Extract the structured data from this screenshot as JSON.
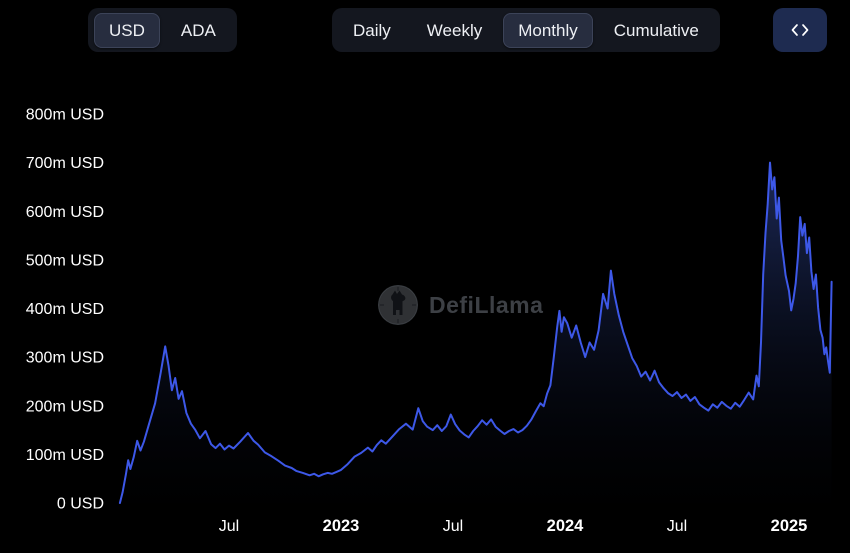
{
  "header": {
    "currency_toggle": {
      "options": [
        {
          "label": "USD",
          "selected": true
        },
        {
          "label": "ADA",
          "selected": false
        }
      ]
    },
    "interval_toggle": {
      "options": [
        {
          "label": "Daily",
          "selected": false
        },
        {
          "label": "Weekly",
          "selected": false
        },
        {
          "label": "Monthly",
          "selected": true
        },
        {
          "label": "Cumulative",
          "selected": false
        }
      ]
    },
    "expand_button": {
      "icon": "code-brackets-icon"
    }
  },
  "watermark": {
    "text": "DefiLlama",
    "icon": "defillama-llama-logo"
  },
  "colors": {
    "background": "#000000",
    "line": "#3d58e8",
    "area_top": "#2e4390",
    "area_bottom": "#060913",
    "toggle_group_bg": "#14171f",
    "toggle_selected_bg": "#272d3f",
    "expand_button_bg": "#1e2b50",
    "axis_label": "#ffffff",
    "watermark_text": "#3d4045"
  },
  "chart_data": {
    "type": "area",
    "title": "",
    "xlabel": "",
    "ylabel": "USD",
    "unit": "m USD",
    "grid": false,
    "legend": "none",
    "ylim": [
      0,
      800
    ],
    "xlim": [
      2022.0,
      2025.27
    ],
    "y_ticks": [
      {
        "label": "0 USD",
        "v": 0
      },
      {
        "label": "100m USD",
        "v": 100
      },
      {
        "label": "200m USD",
        "v": 200
      },
      {
        "label": "300m USD",
        "v": 300
      },
      {
        "label": "400m USD",
        "v": 400
      },
      {
        "label": "500m USD",
        "v": 500
      },
      {
        "label": "600m USD",
        "v": 600
      },
      {
        "label": "700m USD",
        "v": 700
      },
      {
        "label": "800m USD",
        "v": 800
      }
    ],
    "x_ticks": [
      {
        "label": "Jul",
        "t": 2022.5,
        "strong": false
      },
      {
        "label": "2023",
        "t": 2023.0,
        "strong": true
      },
      {
        "label": "Jul",
        "t": 2023.5,
        "strong": false
      },
      {
        "label": "2024",
        "t": 2024.0,
        "strong": true
      },
      {
        "label": "Jul",
        "t": 2024.5,
        "strong": false
      },
      {
        "label": "2025",
        "t": 2025.0,
        "strong": true
      }
    ],
    "points": [
      [
        2022.013,
        0
      ],
      [
        2022.025,
        22
      ],
      [
        2022.04,
        60
      ],
      [
        2022.05,
        88
      ],
      [
        2022.06,
        70
      ],
      [
        2022.075,
        95
      ],
      [
        2022.09,
        128
      ],
      [
        2022.105,
        108
      ],
      [
        2022.12,
        126
      ],
      [
        2022.14,
        158
      ],
      [
        2022.17,
        205
      ],
      [
        2022.195,
        268
      ],
      [
        2022.215,
        322
      ],
      [
        2022.23,
        283
      ],
      [
        2022.245,
        232
      ],
      [
        2022.26,
        257
      ],
      [
        2022.275,
        214
      ],
      [
        2022.29,
        230
      ],
      [
        2022.31,
        185
      ],
      [
        2022.33,
        163
      ],
      [
        2022.35,
        150
      ],
      [
        2022.37,
        133
      ],
      [
        2022.395,
        148
      ],
      [
        2022.42,
        121
      ],
      [
        2022.44,
        113
      ],
      [
        2022.46,
        122
      ],
      [
        2022.48,
        110
      ],
      [
        2022.5,
        118
      ],
      [
        2022.52,
        112
      ],
      [
        2022.55,
        126
      ],
      [
        2022.585,
        144
      ],
      [
        2022.61,
        128
      ],
      [
        2022.63,
        120
      ],
      [
        2022.66,
        104
      ],
      [
        2022.69,
        96
      ],
      [
        2022.72,
        87
      ],
      [
        2022.75,
        77
      ],
      [
        2022.78,
        72
      ],
      [
        2022.8,
        66
      ],
      [
        2022.83,
        62
      ],
      [
        2022.86,
        57
      ],
      [
        2022.88,
        60
      ],
      [
        2022.9,
        55
      ],
      [
        2022.92,
        59
      ],
      [
        2022.94,
        62
      ],
      [
        2022.96,
        60
      ],
      [
        2022.98,
        64
      ],
      [
        2023.0,
        68
      ],
      [
        2023.03,
        80
      ],
      [
        2023.06,
        95
      ],
      [
        2023.09,
        103
      ],
      [
        2023.12,
        114
      ],
      [
        2023.14,
        106
      ],
      [
        2023.16,
        119
      ],
      [
        2023.18,
        129
      ],
      [
        2023.2,
        122
      ],
      [
        2023.23,
        137
      ],
      [
        2023.26,
        152
      ],
      [
        2023.29,
        163
      ],
      [
        2023.32,
        151
      ],
      [
        2023.345,
        195
      ],
      [
        2023.365,
        168
      ],
      [
        2023.385,
        157
      ],
      [
        2023.41,
        150
      ],
      [
        2023.43,
        160
      ],
      [
        2023.45,
        148
      ],
      [
        2023.47,
        158
      ],
      [
        2023.49,
        182
      ],
      [
        2023.51,
        162
      ],
      [
        2023.53,
        149
      ],
      [
        2023.55,
        141
      ],
      [
        2023.57,
        135
      ],
      [
        2023.59,
        148
      ],
      [
        2023.61,
        158
      ],
      [
        2023.63,
        170
      ],
      [
        2023.65,
        161
      ],
      [
        2023.67,
        172
      ],
      [
        2023.69,
        157
      ],
      [
        2023.71,
        149
      ],
      [
        2023.73,
        142
      ],
      [
        2023.75,
        148
      ],
      [
        2023.77,
        152
      ],
      [
        2023.79,
        145
      ],
      [
        2023.81,
        150
      ],
      [
        2023.83,
        159
      ],
      [
        2023.85,
        172
      ],
      [
        2023.87,
        189
      ],
      [
        2023.89,
        205
      ],
      [
        2023.905,
        199
      ],
      [
        2023.92,
        225
      ],
      [
        2023.935,
        242
      ],
      [
        2023.95,
        300
      ],
      [
        2023.965,
        362
      ],
      [
        2023.975,
        395
      ],
      [
        2023.985,
        352
      ],
      [
        2023.995,
        382
      ],
      [
        2024.01,
        370
      ],
      [
        2024.03,
        340
      ],
      [
        2024.05,
        365
      ],
      [
        2024.07,
        330
      ],
      [
        2024.09,
        300
      ],
      [
        2024.11,
        330
      ],
      [
        2024.13,
        315
      ],
      [
        2024.15,
        355
      ],
      [
        2024.17,
        430
      ],
      [
        2024.19,
        400
      ],
      [
        2024.205,
        478
      ],
      [
        2024.22,
        430
      ],
      [
        2024.24,
        386
      ],
      [
        2024.26,
        352
      ],
      [
        2024.28,
        325
      ],
      [
        2024.3,
        298
      ],
      [
        2024.32,
        282
      ],
      [
        2024.34,
        260
      ],
      [
        2024.36,
        270
      ],
      [
        2024.38,
        252
      ],
      [
        2024.4,
        272
      ],
      [
        2024.42,
        248
      ],
      [
        2024.44,
        236
      ],
      [
        2024.46,
        226
      ],
      [
        2024.48,
        220
      ],
      [
        2024.5,
        228
      ],
      [
        2024.52,
        216
      ],
      [
        2024.54,
        223
      ],
      [
        2024.56,
        210
      ],
      [
        2024.58,
        218
      ],
      [
        2024.6,
        203
      ],
      [
        2024.62,
        196
      ],
      [
        2024.64,
        190
      ],
      [
        2024.66,
        203
      ],
      [
        2024.68,
        196
      ],
      [
        2024.7,
        208
      ],
      [
        2024.72,
        200
      ],
      [
        2024.74,
        194
      ],
      [
        2024.76,
        206
      ],
      [
        2024.78,
        198
      ],
      [
        2024.8,
        212
      ],
      [
        2024.82,
        227
      ],
      [
        2024.84,
        213
      ],
      [
        2024.855,
        262
      ],
      [
        2024.865,
        240
      ],
      [
        2024.875,
        330
      ],
      [
        2024.885,
        470
      ],
      [
        2024.895,
        555
      ],
      [
        2024.905,
        615
      ],
      [
        2024.915,
        700
      ],
      [
        2024.925,
        645
      ],
      [
        2024.935,
        670
      ],
      [
        2024.945,
        585
      ],
      [
        2024.955,
        628
      ],
      [
        2024.965,
        540
      ],
      [
        2024.975,
        505
      ],
      [
        2024.985,
        468
      ],
      [
        2025.0,
        436
      ],
      [
        2025.01,
        396
      ],
      [
        2025.02,
        420
      ],
      [
        2025.03,
        452
      ],
      [
        2025.04,
        508
      ],
      [
        2025.05,
        588
      ],
      [
        2025.06,
        550
      ],
      [
        2025.07,
        574
      ],
      [
        2025.08,
        514
      ],
      [
        2025.09,
        546
      ],
      [
        2025.1,
        476
      ],
      [
        2025.11,
        440
      ],
      [
        2025.12,
        470
      ],
      [
        2025.13,
        402
      ],
      [
        2025.14,
        356
      ],
      [
        2025.15,
        340
      ],
      [
        2025.158,
        306
      ],
      [
        2025.166,
        320
      ],
      [
        2025.174,
        292
      ],
      [
        2025.182,
        268
      ],
      [
        2025.19,
        455
      ]
    ]
  }
}
